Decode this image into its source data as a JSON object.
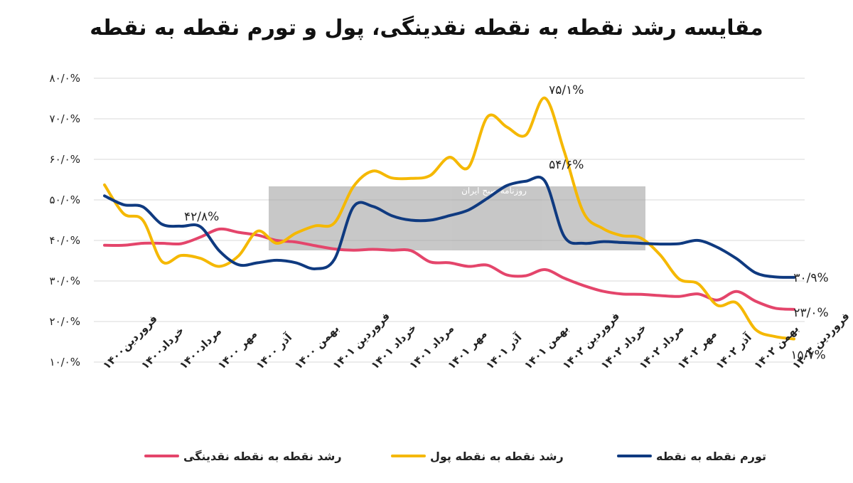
{
  "chart_data": {
    "type": "line",
    "title": "مقایسه رشد نقطه به نقطه نقدینگی، پول و تورم نقطه به نقطه",
    "ylim": [
      10,
      80
    ],
    "yticks": [
      10,
      20,
      30,
      40,
      50,
      60,
      70,
      80
    ],
    "ytick_labels": [
      "۱۰/۰%",
      "۲۰/۰%",
      "۳۰/۰%",
      "۴۰/۰%",
      "۵۰/۰%",
      "۶۰/۰%",
      "۷۰/۰%",
      "۸۰/۰%"
    ],
    "categories": [
      "فروردین۱۴۰۰",
      "خرداد۱۴۰۰",
      "مرداد۱۴۰۰",
      "مهر ۱۴۰۰",
      "آذر ۱۴۰۰",
      "بهمن ۱۴۰۰",
      "فروردین ۱۴۰۱",
      "خرداد ۱۴۰۱",
      "مرداد ۱۴۰۱",
      "مهر ۱۴۰۱",
      "آذر ۱۴۰۱",
      "بهمن ۱۴۰۱",
      "فروردین ۱۴۰۲",
      "خرداد ۱۴۰۲",
      "مرداد ۱۴۰۲",
      "مهر ۱۴۰۲",
      "آذر ۱۴۰۲",
      "بهمن ۱۴۰۲",
      "فروردین ۱۴۰۳"
    ],
    "x": [
      0,
      0.5,
      1,
      1.5,
      2,
      2.5,
      3,
      3.5,
      4,
      4.5,
      5,
      5.5,
      6,
      6.5,
      7,
      7.5,
      8,
      8.5,
      9,
      9.5,
      10,
      10.5,
      11,
      11.5,
      12,
      12.5,
      13,
      13.5,
      14,
      14.5,
      15,
      15.5,
      16,
      16.5,
      17,
      17.5,
      18
    ],
    "series": [
      {
        "name": "رشد نقطه به نقطه نقدینگی",
        "color": "#e4456b",
        "values": [
          38.8,
          38.8,
          39.3,
          39.3,
          39.2,
          40.8,
          42.8,
          42.0,
          41.3,
          40.0,
          39.6,
          38.7,
          37.9,
          37.6,
          37.8,
          37.6,
          37.5,
          34.7,
          34.5,
          33.6,
          33.9,
          31.5,
          31.3,
          32.8,
          30.7,
          28.9,
          27.5,
          26.8,
          26.7,
          26.4,
          26.2,
          26.8,
          25.3,
          27.4,
          25.0,
          23.3,
          23.0
        ]
      },
      {
        "name": "رشد نقطه به نقطه پول",
        "color": "#f5b800",
        "values": [
          53.7,
          46.6,
          45.0,
          34.8,
          36.3,
          35.6,
          33.6,
          36.2,
          42.3,
          39.3,
          41.8,
          43.6,
          44.3,
          53.3,
          57.1,
          55.4,
          55.3,
          56.0,
          60.5,
          58.0,
          70.5,
          68.0,
          66.0,
          75.1,
          62.0,
          47.0,
          43.0,
          41.2,
          40.6,
          36.5,
          30.5,
          29.3,
          24.0,
          24.6,
          18.0,
          16.3,
          15.7
        ]
      },
      {
        "name": "تورم نقطه به نقطه",
        "color": "#0f3a80",
        "values": [
          51.0,
          48.8,
          48.3,
          44.0,
          43.5,
          43.4,
          37.4,
          34.0,
          34.5,
          35.1,
          34.5,
          33.0,
          35.3,
          48.3,
          48.4,
          46.1,
          45.0,
          45.0,
          46.1,
          47.5,
          50.4,
          53.5,
          54.6,
          54.6,
          41.0,
          39.3,
          39.7,
          39.5,
          39.3,
          39.1,
          39.2,
          40.0,
          38.3,
          35.5,
          32.0,
          31.0,
          30.9
        ]
      }
    ],
    "data_labels": [
      {
        "text": "۷۵/۱%",
        "series": 1,
        "index": 23
      },
      {
        "text": "۵۴/۶%",
        "series": 2,
        "index": 23
      },
      {
        "text": "۴۲/۸%",
        "series": 0,
        "index": 6
      },
      {
        "text": "۳۰/۹%",
        "series": 2,
        "index": 36
      },
      {
        "text": "۲۳/۰%",
        "series": 0,
        "index": 36
      },
      {
        "text": "۱۵/۷%",
        "series": 1,
        "index": 36
      }
    ],
    "grid": true,
    "legend": "bottom"
  },
  "watermark": {
    "text": "روزنامه صبح ایران"
  }
}
